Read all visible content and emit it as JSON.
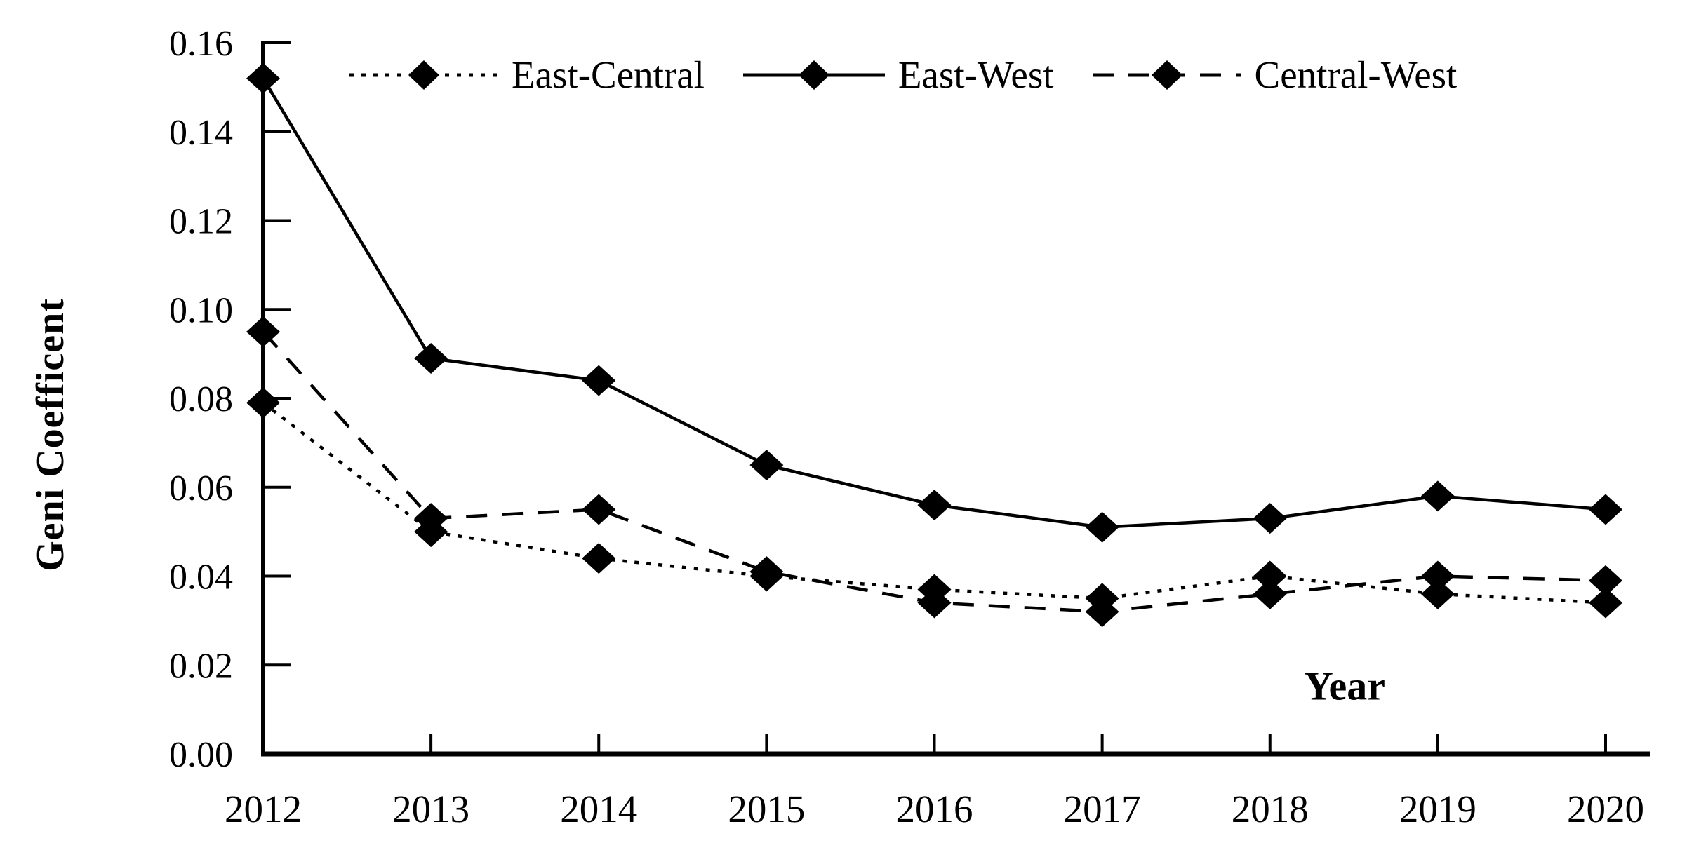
{
  "chart_data": {
    "type": "line",
    "title": "",
    "xlabel": "Year",
    "ylabel": "Geni Coefficent",
    "categories": [
      "2012",
      "2013",
      "2014",
      "2015",
      "2016",
      "2017",
      "2018",
      "2019",
      "2020"
    ],
    "series": [
      {
        "name": "East-Central",
        "line_style": "dotted",
        "marker": "diamond",
        "color": "#000000",
        "values": [
          0.079,
          0.05,
          0.044,
          0.04,
          0.037,
          0.035,
          0.04,
          0.036,
          0.034
        ]
      },
      {
        "name": "East-West",
        "line_style": "solid",
        "marker": "diamond",
        "color": "#000000",
        "values": [
          0.152,
          0.089,
          0.084,
          0.065,
          0.056,
          0.051,
          0.053,
          0.058,
          0.055
        ]
      },
      {
        "name": "Central-West",
        "line_style": "dashed",
        "marker": "diamond",
        "color": "#000000",
        "values": [
          0.095,
          0.053,
          0.055,
          0.041,
          0.034,
          0.032,
          0.036,
          0.04,
          0.039
        ]
      }
    ],
    "ylim": [
      0.0,
      0.16
    ],
    "y_ticks": [
      "0.00",
      "0.02",
      "0.04",
      "0.06",
      "0.08",
      "0.10",
      "0.12",
      "0.14",
      "0.16"
    ],
    "grid": false,
    "legend_position": "top",
    "tick_direction": "inside",
    "axis_color": "#000000",
    "background_color": "#ffffff"
  }
}
